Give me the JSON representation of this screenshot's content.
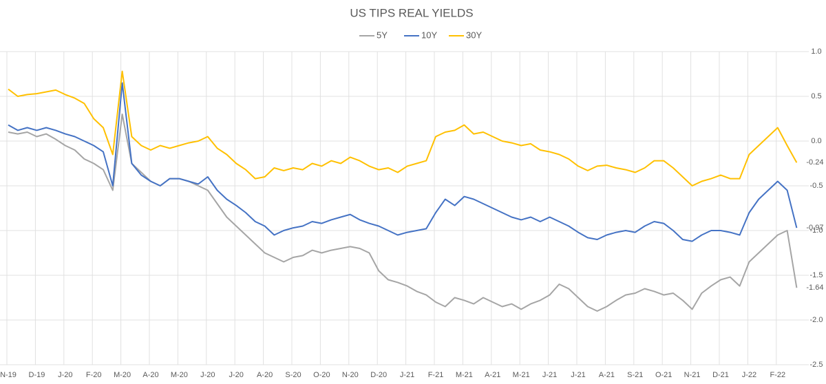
{
  "chart_data": {
    "type": "line",
    "title": "US TIPS REAL YIELDS",
    "categories": [
      "N-19",
      null,
      null,
      "D-19",
      null,
      null,
      "J-20",
      null,
      null,
      "F-20",
      null,
      null,
      "M-20",
      null,
      null,
      "A-20",
      null,
      null,
      "M-20",
      null,
      null,
      "J-20",
      null,
      null,
      "J-20",
      null,
      null,
      "A-20",
      null,
      null,
      "S-20",
      null,
      null,
      "O-20",
      null,
      null,
      "N-20",
      null,
      null,
      "D-20",
      null,
      null,
      "J-21",
      null,
      null,
      "F-21",
      null,
      null,
      "M-21",
      null,
      null,
      "A-21",
      null,
      null,
      "M-21",
      null,
      null,
      "J-21",
      null,
      null,
      "J-21",
      null,
      null,
      "A-21",
      null,
      null,
      "S-21",
      null,
      null,
      "O-21",
      null,
      null,
      "N-21",
      null,
      null,
      "D-21",
      null,
      null,
      "J-22",
      null,
      null,
      "F-22",
      null,
      null
    ],
    "series": [
      {
        "name": "5Y",
        "color": "#a5a5a5",
        "values": [
          0.1,
          0.08,
          0.1,
          0.05,
          0.08,
          0.02,
          -0.05,
          -0.1,
          -0.2,
          -0.25,
          -0.32,
          -0.55,
          0.3,
          -0.25,
          -0.35,
          -0.45,
          -0.5,
          -0.42,
          -0.42,
          -0.45,
          -0.5,
          -0.55,
          -0.7,
          -0.85,
          -0.95,
          -1.05,
          -1.15,
          -1.25,
          -1.3,
          -1.35,
          -1.3,
          -1.28,
          -1.22,
          -1.25,
          -1.22,
          -1.2,
          -1.18,
          -1.2,
          -1.25,
          -1.45,
          -1.55,
          -1.58,
          -1.62,
          -1.68,
          -1.72,
          -1.8,
          -1.85,
          -1.75,
          -1.78,
          -1.82,
          -1.75,
          -1.8,
          -1.85,
          -1.82,
          -1.88,
          -1.82,
          -1.78,
          -1.72,
          -1.6,
          -1.65,
          -1.75,
          -1.85,
          -1.9,
          -1.85,
          -1.78,
          -1.72,
          -1.7,
          -1.65,
          -1.68,
          -1.72,
          -1.7,
          -1.78,
          -1.88,
          -1.7,
          -1.62,
          -1.55,
          -1.52,
          -1.62,
          -1.35,
          -1.25,
          -1.15,
          -1.05,
          -1.0,
          -1.64
        ]
      },
      {
        "name": "10Y",
        "color": "#4472c4",
        "values": [
          0.18,
          0.12,
          0.15,
          0.12,
          0.15,
          0.12,
          0.08,
          0.05,
          0.0,
          -0.05,
          -0.12,
          -0.5,
          0.65,
          -0.25,
          -0.38,
          -0.45,
          -0.5,
          -0.42,
          -0.42,
          -0.45,
          -0.48,
          -0.4,
          -0.55,
          -0.65,
          -0.72,
          -0.8,
          -0.9,
          -0.95,
          -1.05,
          -1.0,
          -0.97,
          -0.95,
          -0.9,
          -0.92,
          -0.88,
          -0.85,
          -0.82,
          -0.88,
          -0.92,
          -0.95,
          -1.0,
          -1.05,
          -1.02,
          -1.0,
          -0.98,
          -0.8,
          -0.65,
          -0.72,
          -0.62,
          -0.65,
          -0.7,
          -0.75,
          -0.8,
          -0.85,
          -0.88,
          -0.85,
          -0.9,
          -0.85,
          -0.9,
          -0.95,
          -1.02,
          -1.08,
          -1.1,
          -1.05,
          -1.02,
          -1.0,
          -1.02,
          -0.95,
          -0.9,
          -0.92,
          -1.0,
          -1.1,
          -1.12,
          -1.05,
          -1.0,
          -1.0,
          -1.02,
          -1.05,
          -0.8,
          -0.65,
          -0.55,
          -0.45,
          -0.55,
          -0.97
        ]
      },
      {
        "name": "30Y",
        "color": "#ffc000",
        "values": [
          0.58,
          0.5,
          0.52,
          0.53,
          0.55,
          0.57,
          0.52,
          0.48,
          0.42,
          0.25,
          0.15,
          -0.15,
          0.78,
          0.05,
          -0.05,
          -0.1,
          -0.05,
          -0.08,
          -0.05,
          -0.02,
          0.0,
          0.05,
          -0.08,
          -0.15,
          -0.25,
          -0.32,
          -0.42,
          -0.4,
          -0.3,
          -0.33,
          -0.3,
          -0.32,
          -0.25,
          -0.28,
          -0.22,
          -0.25,
          -0.18,
          -0.22,
          -0.28,
          -0.32,
          -0.3,
          -0.35,
          -0.28,
          -0.25,
          -0.22,
          0.05,
          0.1,
          0.12,
          0.18,
          0.08,
          0.1,
          0.05,
          0.0,
          -0.02,
          -0.05,
          -0.03,
          -0.1,
          -0.12,
          -0.15,
          -0.2,
          -0.28,
          -0.33,
          -0.28,
          -0.27,
          -0.3,
          -0.32,
          -0.35,
          -0.3,
          -0.22,
          -0.22,
          -0.3,
          -0.4,
          -0.5,
          -0.45,
          -0.42,
          -0.38,
          -0.42,
          -0.42,
          -0.15,
          -0.05,
          0.05,
          0.15,
          -0.05,
          -0.24
        ]
      }
    ],
    "ylim": [
      -2.5,
      1.0
    ],
    "yticks": [
      {
        "value": 1,
        "label": "1.0"
      },
      0.5,
      {
        "value": 0,
        "label": "0.0"
      },
      -0.5,
      {
        "value": -1,
        "label": "-1.0"
      },
      -1.5,
      {
        "value": -2,
        "label": "-2.0"
      },
      -2.5
    ],
    "grid": true,
    "legend": "top"
  }
}
